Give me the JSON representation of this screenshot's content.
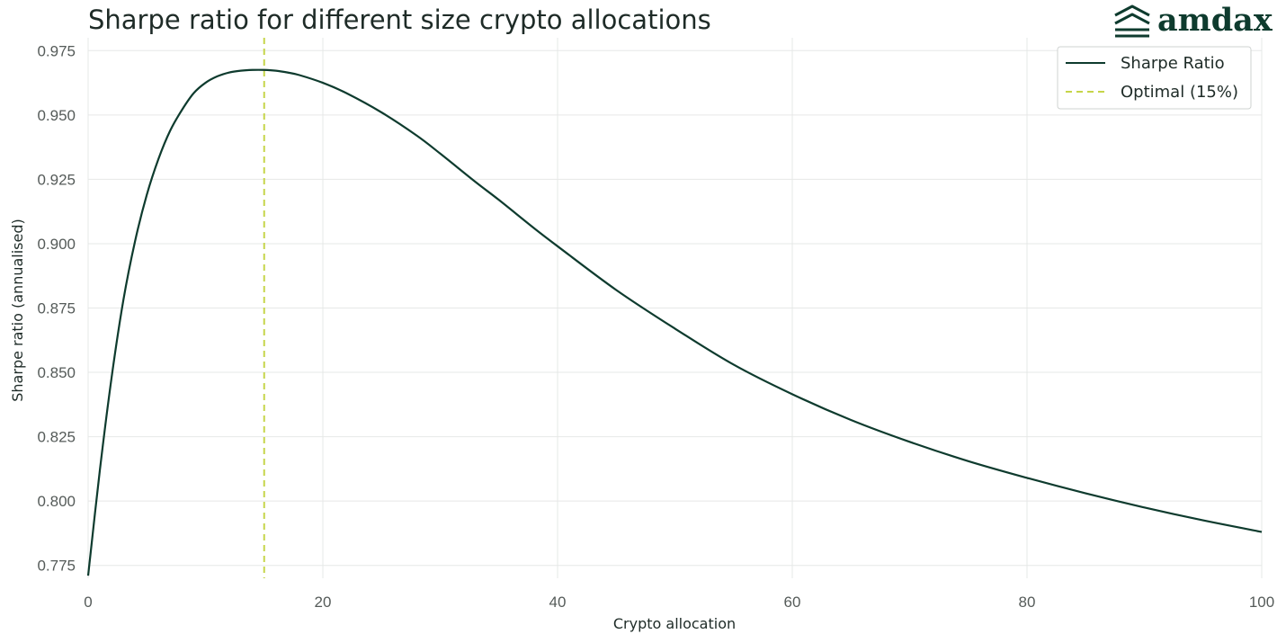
{
  "brand": {
    "name": "amdax",
    "color": "#0e3b2e"
  },
  "chart_data": {
    "type": "line",
    "title": "Sharpe ratio for different size crypto allocations",
    "xlabel": "Crypto allocation",
    "ylabel": "Sharpe ratio (annualised)",
    "xlim": [
      0,
      100
    ],
    "ylim": [
      0.77,
      0.98
    ],
    "x_ticks": [
      0,
      20,
      40,
      60,
      80,
      100
    ],
    "x_tick_labels": [
      "0",
      "20",
      "40",
      "60",
      "80",
      "100"
    ],
    "y_ticks": [
      0.775,
      0.8,
      0.825,
      0.85,
      0.875,
      0.9,
      0.925,
      0.95,
      0.975
    ],
    "y_tick_labels": [
      "0.775",
      "0.800",
      "0.825",
      "0.850",
      "0.875",
      "0.900",
      "0.925",
      "0.950",
      "0.975"
    ],
    "grid": true,
    "legend_position": "top-right",
    "series": [
      {
        "name": "Sharpe Ratio",
        "color": "#0e3b2e",
        "x": [
          0,
          1,
          2,
          3,
          4,
          5,
          6,
          7,
          8,
          9,
          10,
          11,
          12,
          13,
          14,
          15,
          16,
          17,
          18,
          20,
          22,
          25,
          28,
          30,
          33,
          35,
          38,
          40,
          45,
          50,
          55,
          60,
          65,
          70,
          75,
          80,
          85,
          90,
          95,
          100
        ],
        "y": [
          0.771,
          0.812,
          0.848,
          0.878,
          0.901,
          0.919,
          0.933,
          0.944,
          0.952,
          0.9585,
          0.9625,
          0.965,
          0.9665,
          0.9672,
          0.9675,
          0.9675,
          0.9672,
          0.9665,
          0.9655,
          0.9625,
          0.9585,
          0.951,
          0.942,
          0.935,
          0.924,
          0.917,
          0.906,
          0.899,
          0.882,
          0.867,
          0.853,
          0.8415,
          0.8315,
          0.823,
          0.8155,
          0.809,
          0.803,
          0.7975,
          0.7925,
          0.788
        ]
      }
    ],
    "reference_lines": [
      {
        "name": "Optimal (15%)",
        "orientation": "vertical",
        "x": 15,
        "color": "#c6d54a",
        "style": "dashed"
      }
    ]
  }
}
